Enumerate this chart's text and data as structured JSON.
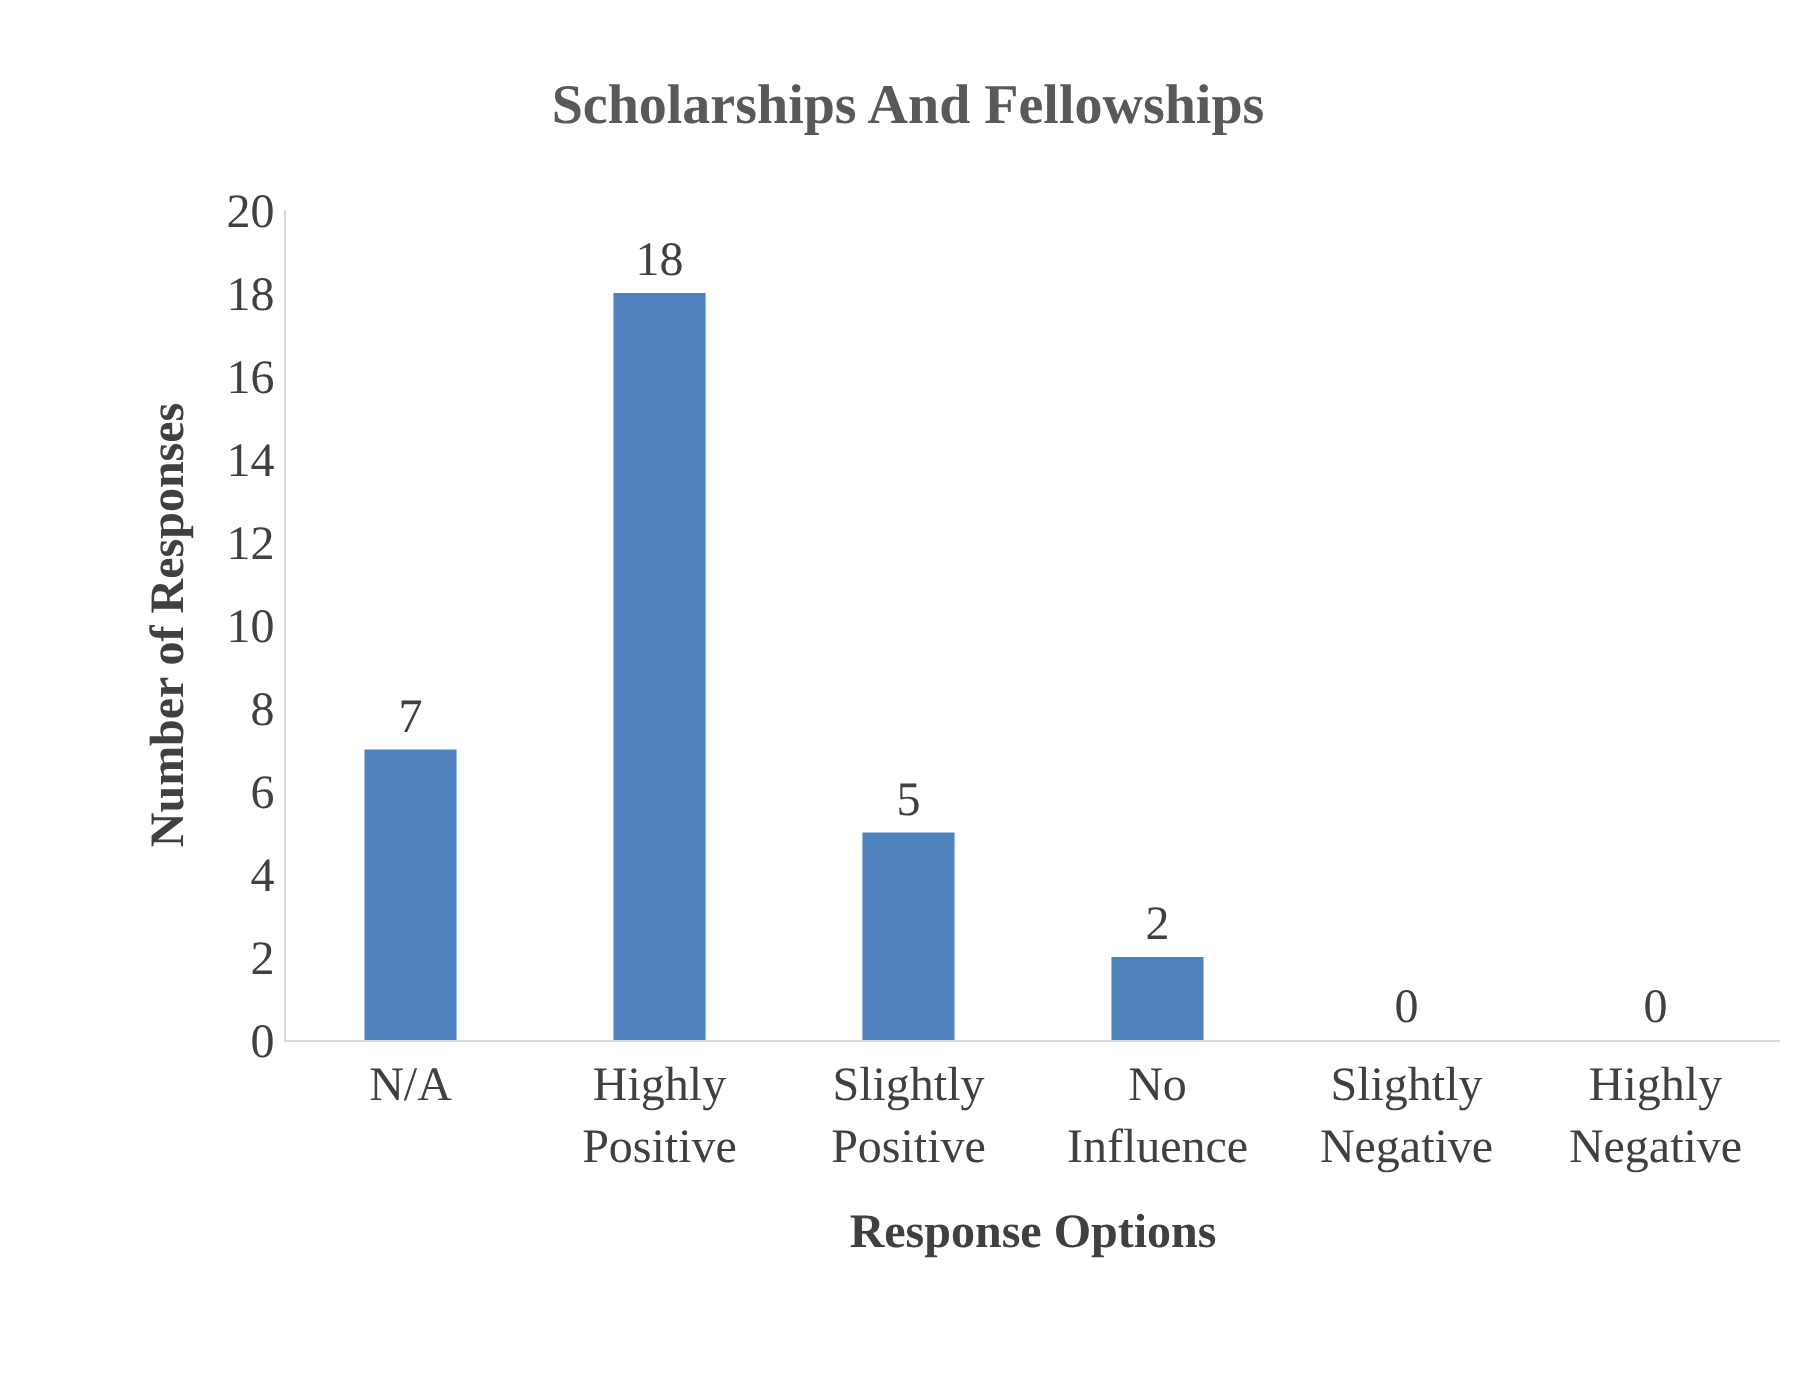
{
  "chart_data": {
    "type": "bar",
    "title": "Scholarships And Fellowships",
    "xlabel": "Response Options",
    "ylabel": "Number of Responses",
    "categories": [
      "N/A",
      "Highly Positive",
      "Slightly Positive",
      "No Influence",
      "Slightly Negative",
      "Highly Negative"
    ],
    "values": [
      7,
      18,
      5,
      2,
      0,
      0
    ],
    "color": "#4f81bd",
    "ylim": [
      0,
      20
    ],
    "yticks": [
      0,
      2,
      4,
      6,
      8,
      10,
      12,
      14,
      16,
      18,
      20
    ],
    "grid": false,
    "legend": false,
    "data_labels": true
  }
}
